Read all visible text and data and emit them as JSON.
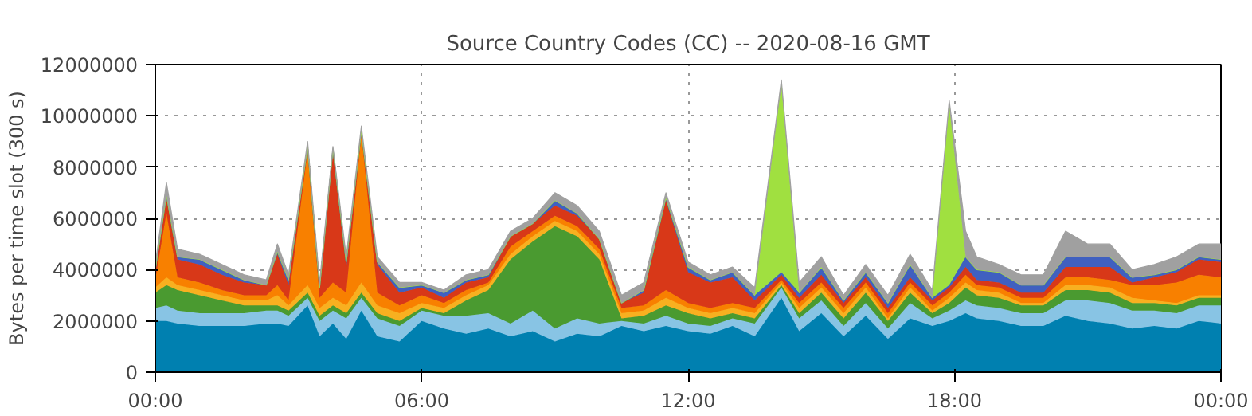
{
  "chart_data": {
    "type": "area",
    "stacked": true,
    "title": "Source Country Codes (CC) -- 2020-08-16 GMT",
    "ylabel": "Bytes per time slot (300 s)",
    "x": [
      0,
      0.25,
      0.5,
      1,
      1.5,
      2,
      2.5,
      2.75,
      3,
      3.43,
      3.7,
      4,
      4.3,
      4.64,
      5,
      5.5,
      6,
      6.5,
      7,
      7.5,
      8,
      8.5,
      9,
      9.5,
      10,
      10.5,
      11,
      11.5,
      12,
      12.5,
      13,
      13.5,
      14.1,
      14.5,
      15,
      15.5,
      16,
      16.5,
      17,
      17.5,
      17.88,
      18.25,
      18.5,
      19,
      19.5,
      20,
      20.5,
      21,
      21.5,
      22,
      22.5,
      23,
      23.5,
      24
    ],
    "xlim": [
      0,
      24
    ],
    "xticks": [
      {
        "value": 0,
        "label": "00:00"
      },
      {
        "value": 6,
        "label": "06:00"
      },
      {
        "value": 12,
        "label": "12:00"
      },
      {
        "value": 18,
        "label": "18:00"
      },
      {
        "value": 24,
        "label": "00:00"
      }
    ],
    "ylim": [
      0,
      12000000
    ],
    "yticks": [
      0,
      2000000,
      4000000,
      6000000,
      8000000,
      10000000,
      12000000
    ],
    "grid": true,
    "series": [
      {
        "color": "#0080b0",
        "values": [
          2000000.0,
          2000000.0,
          1900000.0,
          1800000.0,
          1800000.0,
          1800000.0,
          1900000.0,
          1900000.0,
          1800000.0,
          2600000.0,
          1400000.0,
          1900000.0,
          1300000.0,
          2400000.0,
          1400000.0,
          1200000.0,
          2000000.0,
          1700000.0,
          1500000.0,
          1700000.0,
          1400000.0,
          1600000.0,
          1200000.0,
          1500000.0,
          1400000.0,
          1800000.0,
          1600000.0,
          1800000.0,
          1600000.0,
          1500000.0,
          1800000.0,
          1400000.0,
          2900000.0,
          1600000.0,
          2300000.0,
          1400000.0,
          2200000.0,
          1300000.0,
          2100000.0,
          1800000.0,
          2000000.0,
          2300000.0,
          2100000.0,
          2000000.0,
          1800000.0,
          1800000.0,
          2200000.0,
          2000000.0,
          1900000.0,
          1700000.0,
          1800000.0,
          1700000.0,
          2000000.0,
          1900000.0
        ]
      },
      {
        "color": "#88c4e4",
        "values": [
          500000.0,
          600000.0,
          500000.0,
          500000.0,
          500000.0,
          500000.0,
          500000.0,
          500000.0,
          400000.0,
          300000.0,
          600000.0,
          500000.0,
          800000.0,
          500000.0,
          700000.0,
          600000.0,
          400000.0,
          500000.0,
          700000.0,
          600000.0,
          500000.0,
          800000.0,
          500000.0,
          600000.0,
          500000.0,
          200000.0,
          300000.0,
          400000.0,
          300000.0,
          300000.0,
          300000.0,
          500000.0,
          400000.0,
          500000.0,
          500000.0,
          400000.0,
          500000.0,
          400000.0,
          600000.0,
          300000.0,
          400000.0,
          500000.0,
          500000.0,
          500000.0,
          500000.0,
          500000.0,
          600000.0,
          800000.0,
          800000.0,
          700000.0,
          600000.0,
          600000.0,
          600000.0,
          700000.0
        ]
      },
      {
        "color": "#4a9a30",
        "values": [
          600000.0,
          800000.0,
          800000.0,
          700000.0,
          500000.0,
          300000.0,
          200000.0,
          200000.0,
          200000.0,
          200000.0,
          200000.0,
          200000.0,
          200000.0,
          200000.0,
          200000.0,
          200000.0,
          100000.0,
          100000.0,
          600000.0,
          900000.0,
          2500000.0,
          2700000.0,
          4000000.0,
          3200000.0,
          2500000.0,
          100000.0,
          300000.0,
          400000.0,
          400000.0,
          300000.0,
          200000.0,
          200000.0,
          100000.0,
          200000.0,
          300000.0,
          300000.0,
          400000.0,
          300000.0,
          400000.0,
          200000.0,
          300000.0,
          500000.0,
          400000.0,
          400000.0,
          300000.0,
          300000.0,
          400000.0,
          400000.0,
          400000.0,
          300000.0,
          300000.0,
          300000.0,
          300000.0,
          300000.0
        ]
      },
      {
        "color": "#f8b020",
        "values": [
          200000.0,
          300000.0,
          200000.0,
          200000.0,
          200000.0,
          200000.0,
          200000.0,
          400000.0,
          200000.0,
          300000.0,
          300000.0,
          300000.0,
          300000.0,
          400000.0,
          300000.0,
          300000.0,
          200000.0,
          200000.0,
          200000.0,
          200000.0,
          200000.0,
          200000.0,
          200000.0,
          200000.0,
          200000.0,
          200000.0,
          200000.0,
          300000.0,
          200000.0,
          200000.0,
          200000.0,
          200000.0,
          100000.0,
          200000.0,
          200000.0,
          200000.0,
          200000.0,
          100000.0,
          200000.0,
          100000.0,
          200000.0,
          200000.0,
          200000.0,
          200000.0,
          100000.0,
          100000.0,
          200000.0,
          200000.0,
          200000.0,
          200000.0,
          100000.0,
          100000.0,
          100000.0,
          100000.0
        ]
      },
      {
        "color": "#f88000",
        "values": [
          300000.0,
          2500000.0,
          300000.0,
          300000.0,
          200000.0,
          200000.0,
          200000.0,
          400000.0,
          200000.0,
          5200000.0,
          400000.0,
          600000.0,
          500000.0,
          5800000.0,
          500000.0,
          300000.0,
          300000.0,
          200000.0,
          200000.0,
          100000.0,
          300000.0,
          200000.0,
          200000.0,
          200000.0,
          200000.0,
          200000.0,
          200000.0,
          300000.0,
          200000.0,
          200000.0,
          200000.0,
          200000.0,
          100000.0,
          200000.0,
          200000.0,
          200000.0,
          200000.0,
          200000.0,
          200000.0,
          200000.0,
          200000.0,
          300000.0,
          200000.0,
          200000.0,
          200000.0,
          200000.0,
          300000.0,
          300000.0,
          300000.0,
          500000.0,
          600000.0,
          800000.0,
          800000.0,
          700000.0
        ]
      },
      {
        "color": "#d83818",
        "values": [
          300000.0,
          600000.0,
          700000.0,
          700000.0,
          600000.0,
          500000.0,
          400000.0,
          1200000.0,
          600000.0,
          200000.0,
          400000.0,
          5100000.0,
          1000000.0,
          100000.0,
          1100000.0,
          500000.0,
          300000.0,
          200000.0,
          300000.0,
          200000.0,
          400000.0,
          300000.0,
          400000.0,
          400000.0,
          400000.0,
          200000.0,
          500000.0,
          3500000.0,
          1200000.0,
          1000000.0,
          1000000.0,
          300000.0,
          200000.0,
          200000.0,
          300000.0,
          200000.0,
          200000.0,
          200000.0,
          200000.0,
          200000.0,
          200000.0,
          300000.0,
          200000.0,
          200000.0,
          200000.0,
          200000.0,
          400000.0,
          400000.0,
          500000.0,
          100000.0,
          300000.0,
          400000.0,
          600000.0,
          600000.0
        ]
      },
      {
        "color": "#4060c0",
        "values": [
          100000.0,
          100000.0,
          100000.0,
          200000.0,
          200000.0,
          100000.0,
          0,
          100000.0,
          200000.0,
          0,
          0,
          100000.0,
          200000.0,
          0,
          100000.0,
          200000.0,
          100000.0,
          200000.0,
          100000.0,
          100000.0,
          0,
          0,
          200000.0,
          100000.0,
          0,
          0,
          100000.0,
          100000.0,
          200000.0,
          100000.0,
          200000.0,
          200000.0,
          100000.0,
          200000.0,
          300000.0,
          100000.0,
          200000.0,
          200000.0,
          500000.0,
          100000.0,
          100000.0,
          400000.0,
          400000.0,
          400000.0,
          300000.0,
          300000.0,
          400000.0,
          400000.0,
          400000.0,
          200000.0,
          100000.0,
          100000.0,
          100000.0,
          100000.0
        ]
      },
      {
        "color": "#a0e040",
        "values": [
          0,
          0,
          0,
          0,
          0,
          0,
          0,
          0,
          0,
          0,
          0,
          0,
          0,
          0,
          0,
          0,
          0,
          0,
          0,
          0,
          0,
          0,
          0,
          0,
          0,
          0,
          0,
          0,
          0,
          0,
          0,
          0,
          7300000.0,
          0,
          0,
          0,
          0,
          0,
          0,
          0,
          7000000.0,
          0,
          0,
          0,
          0,
          0,
          0,
          0,
          0,
          0,
          0,
          0,
          0,
          0
        ]
      },
      {
        "color": "#a0a0a0",
        "values": [
          200000.0,
          500000.0,
          300000.0,
          200000.0,
          200000.0,
          200000.0,
          200000.0,
          300000.0,
          200000.0,
          200000.0,
          200000.0,
          100000.0,
          200000.0,
          200000.0,
          200000.0,
          200000.0,
          100000.0,
          100000.0,
          200000.0,
          200000.0,
          200000.0,
          200000.0,
          300000.0,
          300000.0,
          300000.0,
          300000.0,
          300000.0,
          200000.0,
          200000.0,
          200000.0,
          200000.0,
          300000.0,
          200000.0,
          400000.0,
          400000.0,
          200000.0,
          300000.0,
          300000.0,
          400000.0,
          300000.0,
          200000.0,
          1000000.0,
          500000.0,
          300000.0,
          400000.0,
          400000.0,
          1000000.0,
          500000.0,
          500000.0,
          300000.0,
          400000.0,
          500000.0,
          500000.0,
          600000.0
        ]
      }
    ]
  }
}
